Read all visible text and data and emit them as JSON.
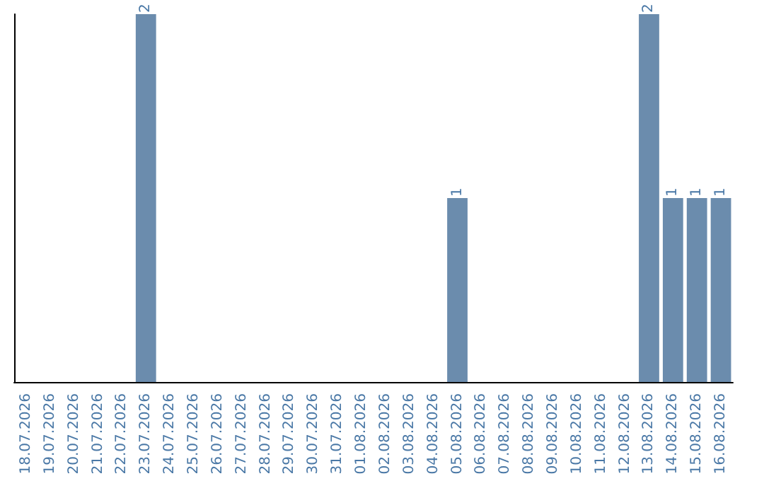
{
  "chart_data": {
    "type": "bar",
    "categories": [
      "18.07.2026",
      "19.07.2026",
      "20.07.2026",
      "21.07.2026",
      "22.07.2026",
      "23.07.2026",
      "24.07.2026",
      "25.07.2026",
      "26.07.2026",
      "27.07.2026",
      "28.07.2026",
      "29.07.2026",
      "30.07.2026",
      "31.07.2026",
      "01.08.2026",
      "02.08.2026",
      "03.08.2026",
      "04.08.2026",
      "05.08.2026",
      "06.08.2026",
      "07.08.2026",
      "08.08.2026",
      "09.08.2026",
      "10.08.2026",
      "11.08.2026",
      "12.08.2026",
      "13.08.2026",
      "14.08.2026",
      "15.08.2026",
      "16.08.2026"
    ],
    "values": [
      0,
      0,
      0,
      0,
      0,
      2,
      0,
      0,
      0,
      0,
      0,
      0,
      0,
      0,
      0,
      0,
      0,
      0,
      1,
      0,
      0,
      0,
      0,
      0,
      0,
      0,
      2,
      1,
      1,
      1
    ],
    "value_labels": [
      null,
      null,
      null,
      null,
      null,
      "2",
      null,
      null,
      null,
      null,
      null,
      null,
      null,
      null,
      null,
      null,
      null,
      null,
      "1",
      null,
      null,
      null,
      null,
      null,
      null,
      null,
      "2",
      "1",
      "1",
      "1"
    ],
    "color": "#6b8cad",
    "grid": false,
    "tick_labels": "x"
  }
}
